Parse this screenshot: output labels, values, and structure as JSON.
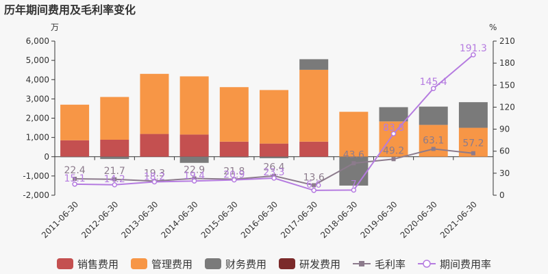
{
  "chart_data": {
    "type": "bar",
    "title": "历年期间费用及毛利率变化",
    "left_unit": "万",
    "right_unit": "%",
    "categories": [
      "2011-06-30",
      "2012-06-30",
      "2013-06-30",
      "2014-06-30",
      "2015-06-30",
      "2016-06-30",
      "2017-06-30",
      "2018-06-30",
      "2019-06-30",
      "2020-06-30",
      "2021-06-30"
    ],
    "left_axis": {
      "min": -2000,
      "max": 6000,
      "ticks": [
        "-2,000",
        "-1,000",
        "0",
        "1,000",
        "2,000",
        "3,000",
        "4,000",
        "5,000",
        "6,000"
      ]
    },
    "right_axis": {
      "min": 0,
      "max": 210,
      "ticks": [
        "0",
        "30",
        "60",
        "90",
        "120",
        "150",
        "180",
        "210"
      ]
    },
    "grid": false,
    "legend_position": "bottom",
    "bar_series": [
      {
        "name": "销售费用",
        "color": "#c45050",
        "values": [
          850,
          880,
          1180,
          1150,
          780,
          680,
          780,
          0,
          0,
          0,
          0
        ]
      },
      {
        "name": "管理费用",
        "color": "#f79646",
        "values": [
          1850,
          2220,
          3120,
          3020,
          2830,
          2780,
          3730,
          2330,
          1830,
          1650,
          1500
        ]
      },
      {
        "name": "财务费用",
        "color": "#7a7a7a",
        "values": [
          -30,
          -120,
          0,
          -320,
          -40,
          -80,
          550,
          -1500,
          740,
          950,
          1330
        ]
      },
      {
        "name": "研发费用",
        "color": "#7b2a2a",
        "values": [
          0,
          0,
          0,
          0,
          0,
          0,
          0,
          0,
          0,
          0,
          0
        ]
      }
    ],
    "line_series": [
      {
        "name": "毛利率",
        "color": "#8c7b8c",
        "values": [
          22.4,
          21.7,
          19.3,
          22.9,
          21.8,
          26.4,
          13.6,
          43.6,
          49.2,
          63.1,
          57.2
        ],
        "labels": [
          "22.4",
          "21.7",
          "19.3",
          "22.9",
          "21.8",
          "26.4",
          "13.6",
          "43.6",
          "49.2",
          "63.1",
          "57.2"
        ]
      },
      {
        "name": "期间费用率",
        "color": "#b57be0",
        "values": [
          15.1,
          14.2,
          18.2,
          19.4,
          20.9,
          23.3,
          6.6,
          7,
          83.8,
          145.4,
          191.3
        ],
        "labels": [
          "15.1",
          "14.2",
          "18.2",
          "19.4",
          "20.9",
          "23.3",
          "6.6",
          "7",
          "83.8",
          "145.4",
          "191.3"
        ]
      }
    ]
  }
}
